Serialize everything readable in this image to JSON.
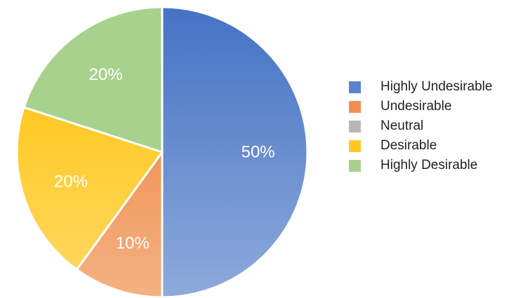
{
  "chart_data": {
    "type": "pie",
    "categories": [
      "Highly Undesirable",
      "Undesirable",
      "Neutral",
      "Desirable",
      "Highly Desirable"
    ],
    "values": [
      50,
      10,
      0,
      20,
      20
    ],
    "value_labels": [
      "50%",
      "10%",
      "",
      "20%",
      "20%"
    ],
    "colors": {
      "Highly Undesirable": [
        "#4472c4",
        "#8eaadb"
      ],
      "Undesirable": [
        "#ed7d31",
        "#f4b183"
      ],
      "Neutral": [
        "#a5a5a5",
        "#d0d0d0"
      ],
      "Desirable": [
        "#ffc000",
        "#ffd966"
      ],
      "Highly Desirable": [
        "#a9d18e",
        "#a9d18e"
      ]
    },
    "legend_position": "right"
  },
  "legend": {
    "items": [
      {
        "label": "Highly Undesirable",
        "color": "#5b83cf"
      },
      {
        "label": "Undesirable",
        "color": "#ef8f4f"
      },
      {
        "label": "Neutral",
        "color": "#b8b8b8"
      },
      {
        "label": "Desirable",
        "color": "#ffc82a"
      },
      {
        "label": "Highly Desirable",
        "color": "#a9d18e"
      }
    ]
  }
}
